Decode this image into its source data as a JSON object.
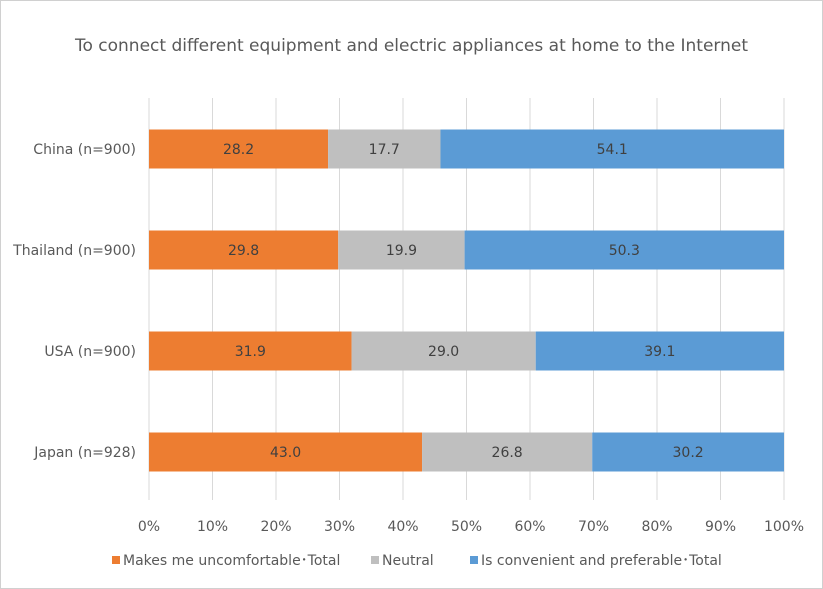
{
  "chart_data": {
    "type": "bar",
    "orientation": "horizontal",
    "stacked": true,
    "percent_stacked": true,
    "title": "To connect different equipment and electric appliances at home to the  Internet",
    "categories": [
      "China (n=900)",
      "Thailand (n=900)",
      "USA (n=900)",
      "Japan (n=928)"
    ],
    "series": [
      {
        "name": "Makes me uncomfortable･Total",
        "color": "#ED7D31",
        "values": [
          28.2,
          29.8,
          31.9,
          43.0
        ],
        "labels": [
          "28.2",
          "29.8",
          "31.9",
          "43.0"
        ]
      },
      {
        "name": "Neutral",
        "color": "#BFBFBF",
        "values": [
          17.7,
          19.9,
          29.0,
          26.8
        ],
        "labels": [
          "17.7",
          "19.9",
          "29.0",
          "26.8"
        ]
      },
      {
        "name": "Is convenient and preferable･Total",
        "color": "#5B9BD5",
        "values": [
          54.1,
          50.3,
          39.1,
          30.2
        ],
        "labels": [
          "54.1",
          "50.3",
          "39.1",
          "30.2"
        ]
      }
    ],
    "xlim": [
      0,
      100
    ],
    "xticks": [
      "0%",
      "10%",
      "20%",
      "30%",
      "40%",
      "50%",
      "60%",
      "70%",
      "80%",
      "90%",
      "100%"
    ],
    "grid": "vertical",
    "legend": "bottom"
  }
}
